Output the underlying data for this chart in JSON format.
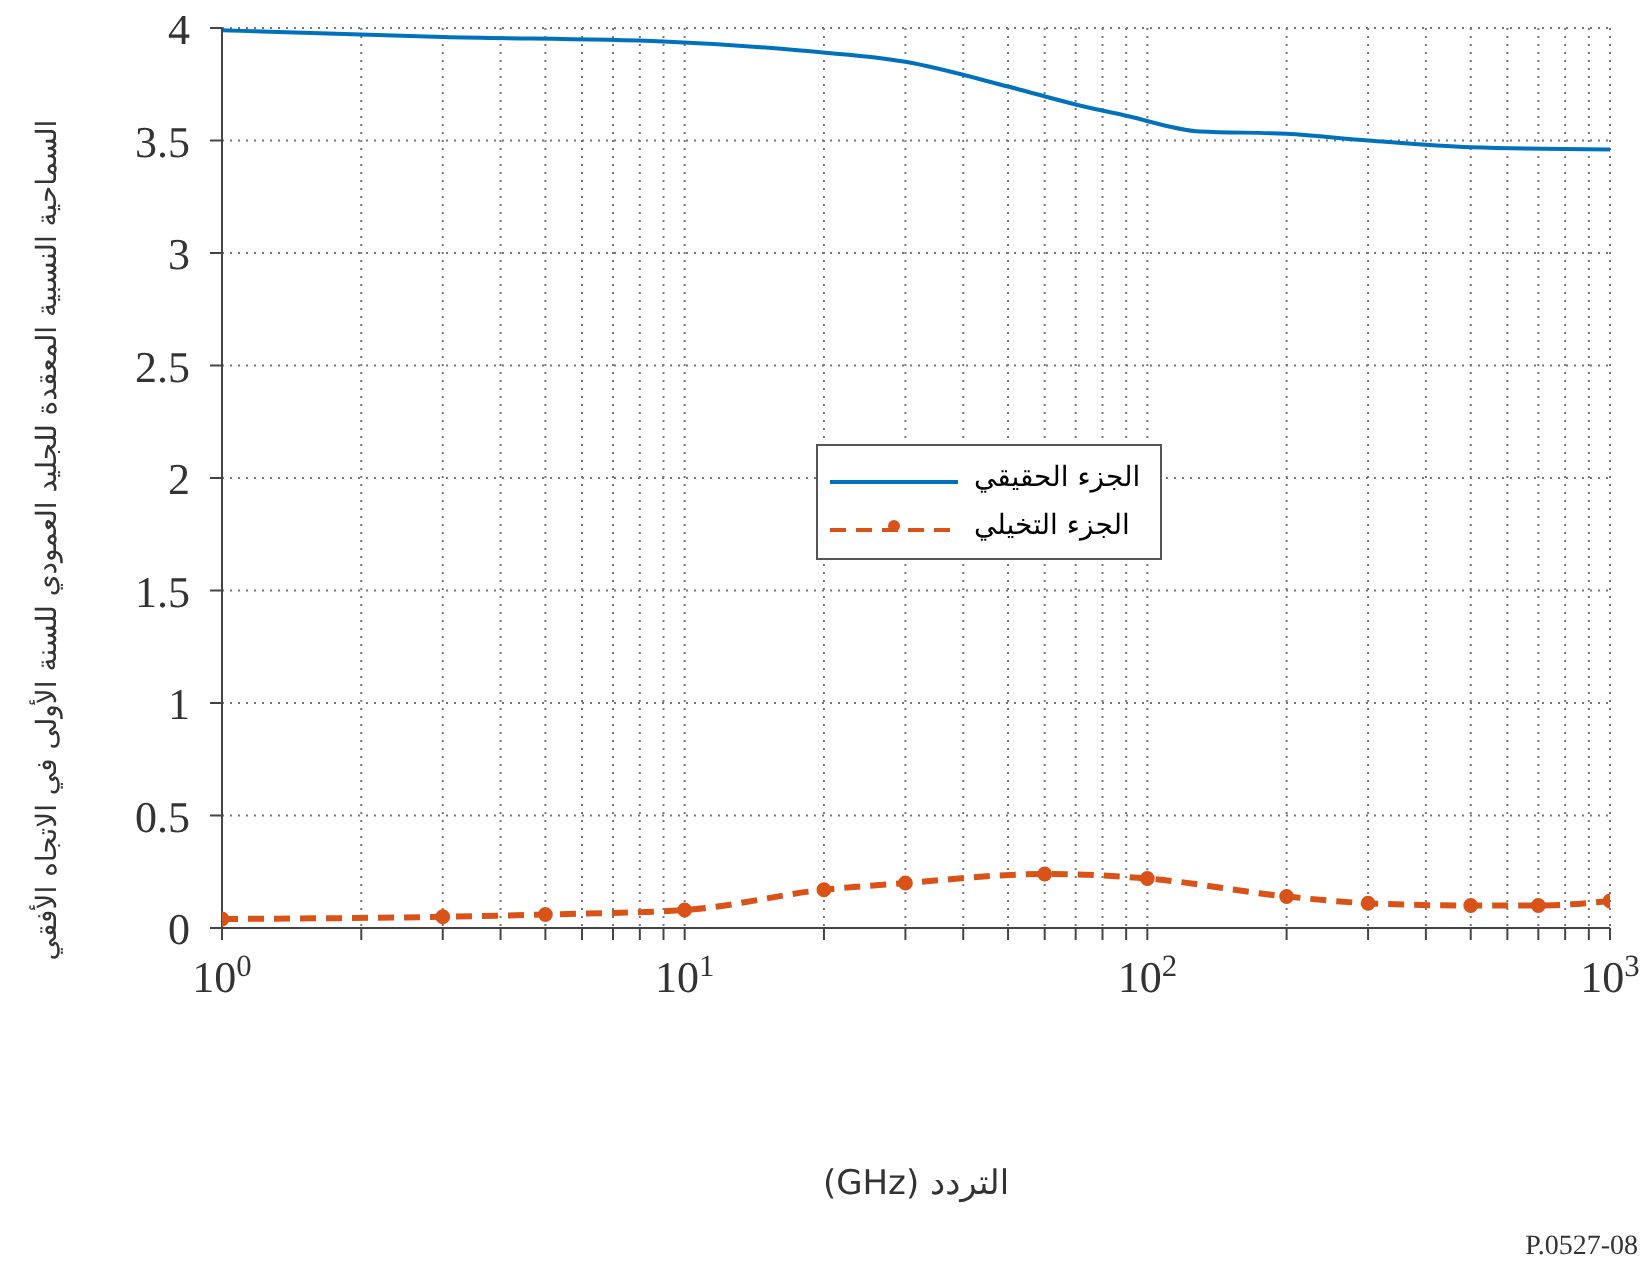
{
  "chart_data": {
    "type": "line",
    "xlabel": "التردد (GHz)",
    "ylabel": "السماحية النسبية المعقدة للجليد العمودي للسنة الأولى في الاتجاه الأفقي",
    "annotations": [
      "P.0527-08"
    ],
    "log": "x",
    "xlim": [
      1,
      1000
    ],
    "xticks": [
      {
        "value": 1,
        "label": "10$^{0}$"
      },
      {
        "value": 2,
        "label": null
      },
      {
        "value": 3,
        "label": null
      },
      {
        "value": 4,
        "label": null
      },
      {
        "value": 5,
        "label": null
      },
      {
        "value": 6,
        "label": null
      },
      {
        "value": 7,
        "label": null
      },
      {
        "value": 8,
        "label": null
      },
      {
        "value": 9,
        "label": null
      },
      {
        "value": 10,
        "label": "10$^{1}$"
      },
      {
        "value": 20,
        "label": null
      },
      {
        "value": 30,
        "label": null
      },
      {
        "value": 40,
        "label": null
      },
      {
        "value": 50,
        "label": null
      },
      {
        "value": 60,
        "label": null
      },
      {
        "value": 70,
        "label": null
      },
      {
        "value": 80,
        "label": null
      },
      {
        "value": 90,
        "label": null
      },
      {
        "value": 100,
        "label": "10$^{2}$"
      },
      {
        "value": 200,
        "label": null
      },
      {
        "value": 300,
        "label": null
      },
      {
        "value": 400,
        "label": null
      },
      {
        "value": 500,
        "label": null
      },
      {
        "value": 600,
        "label": null
      },
      {
        "value": 700,
        "label": null
      },
      {
        "value": 800,
        "label": null
      },
      {
        "value": 900,
        "label": null
      },
      {
        "value": 1000,
        "label": "10$^{3}$"
      }
    ],
    "ylim": [
      0,
      4
    ],
    "yticks": [
      0,
      0.5,
      1,
      1.5,
      2,
      2.5,
      3,
      3.5,
      4
    ],
    "grid": true,
    "legend": "center",
    "series": [
      {
        "name": "الجزء الحقيقي",
        "color": "#0072bd",
        "line_style": "solid",
        "marker": "none",
        "x": [
          1,
          3,
          9,
          17.8,
          30,
          50,
          70,
          90,
          130,
          200,
          300,
          500,
          1000
        ],
        "values": [
          3.99,
          3.96,
          3.94,
          3.9,
          3.85,
          3.74,
          3.66,
          3.61,
          3.54,
          3.53,
          3.5,
          3.47,
          3.46
        ]
      },
      {
        "name": "الجزء التخيلي",
        "color": "#d95319",
        "line_style": "dashed",
        "marker": "circle",
        "x": [
          1,
          3,
          5,
          10,
          20,
          30,
          60,
          100,
          200,
          300,
          500,
          700,
          1000
        ],
        "values": [
          0.04,
          0.05,
          0.06,
          0.08,
          0.17,
          0.2,
          0.24,
          0.22,
          0.14,
          0.11,
          0.1,
          0.1,
          0.12
        ]
      }
    ]
  }
}
